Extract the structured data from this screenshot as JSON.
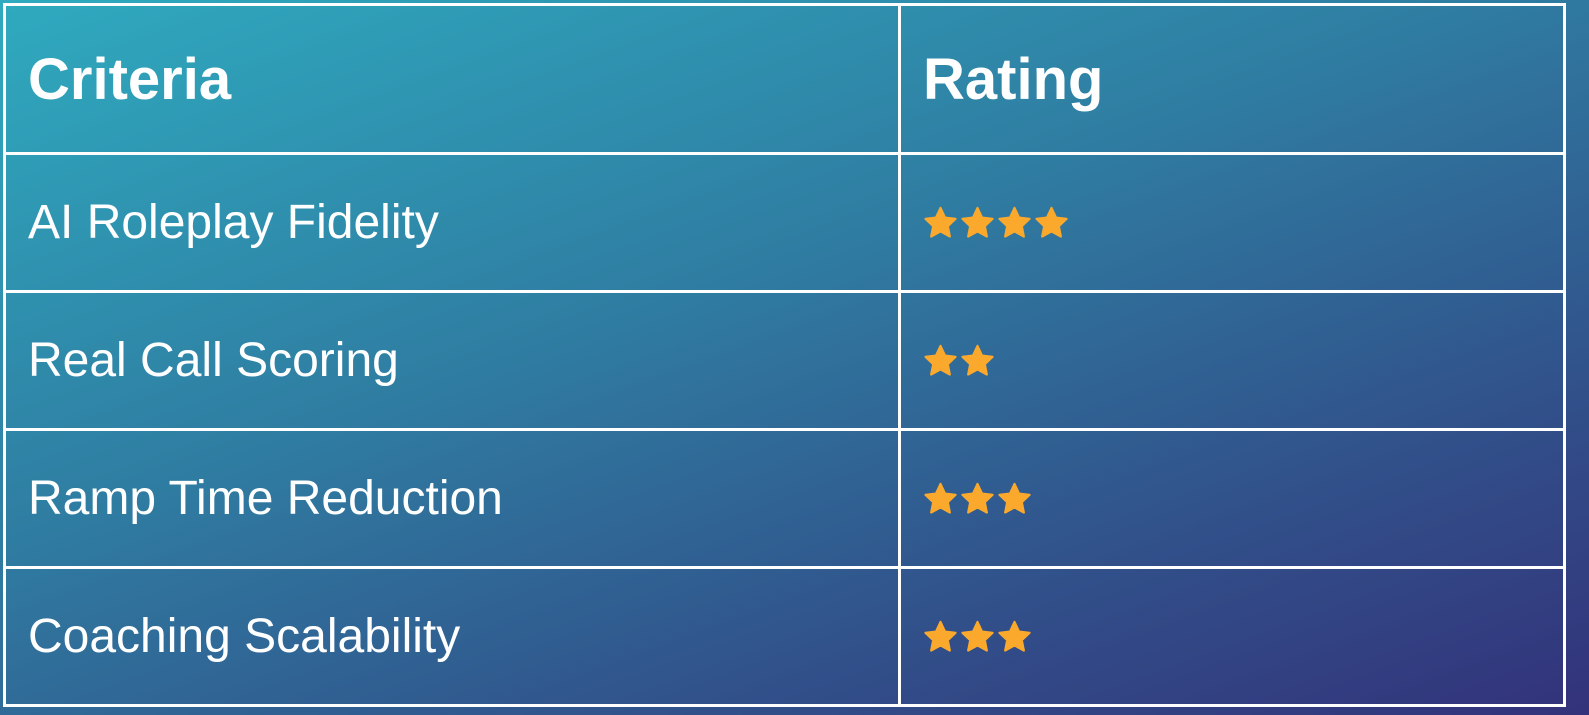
{
  "colors": {
    "star": "#FBA92C",
    "gradient_start": "#2faabf",
    "gradient_end": "#33327a",
    "border": "#ffffff"
  },
  "table": {
    "headers": [
      "Criteria",
      "Rating"
    ],
    "rows": [
      {
        "criteria": "AI Roleplay Fidelity",
        "rating": 4
      },
      {
        "criteria": "Real Call Scoring",
        "rating": 2
      },
      {
        "criteria": "Ramp Time Reduction",
        "rating": 3
      },
      {
        "criteria": "Coaching Scalability",
        "rating": 3
      }
    ],
    "rating_icon": "star-icon"
  }
}
